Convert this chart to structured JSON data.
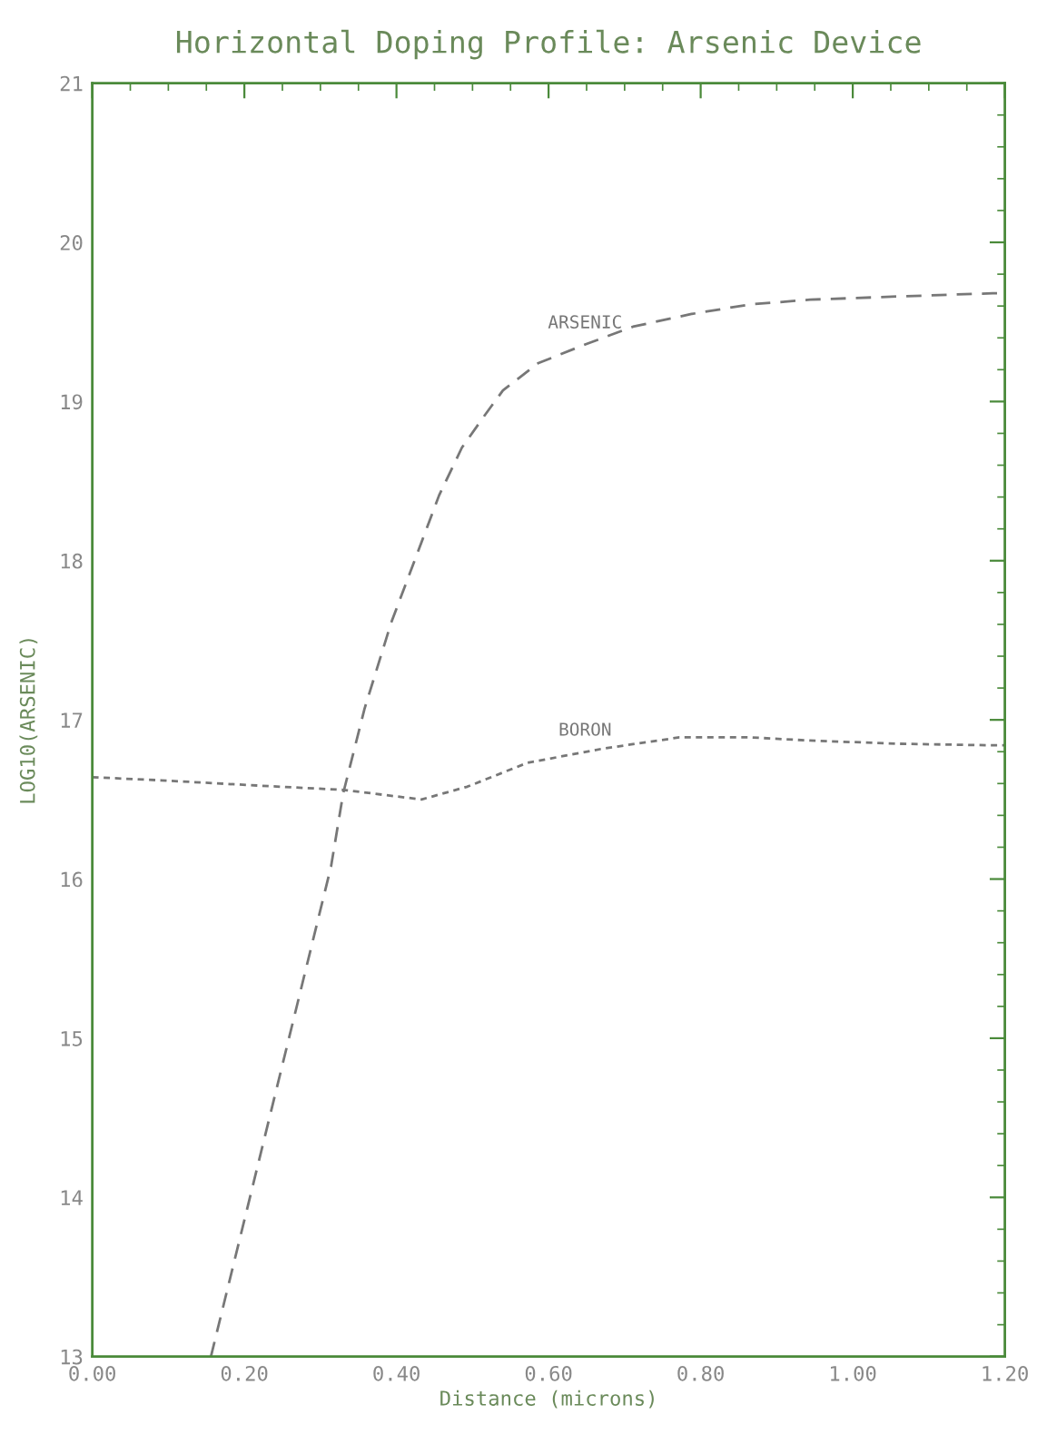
{
  "chart_data": {
    "type": "line",
    "title": "Horizontal Doping Profile: Arsenic Device",
    "xlabel": "Distance (microns)",
    "ylabel": "LOG10(ARSENIC)",
    "xlim": [
      0,
      1.2
    ],
    "xticks": [
      {
        "value": 0,
        "label": "0.00"
      },
      {
        "value": 0.2,
        "label": "0.20"
      },
      {
        "value": 0.4,
        "label": "0.40"
      },
      {
        "value": 0.6,
        "label": "0.60"
      },
      {
        "value": 0.8,
        "label": "0.80"
      },
      {
        "value": 1.0,
        "label": "1.00"
      },
      {
        "value": 1.2,
        "label": "1.20"
      }
    ],
    "ylim": [
      13,
      21
    ],
    "yticks": [
      13,
      14,
      15,
      16,
      17,
      18,
      19,
      20,
      21
    ],
    "grid": false,
    "marker": "none",
    "series": [
      {
        "name": "ARSENIC",
        "color": "#777777",
        "line_style": "dashed",
        "x": [
          0.156,
          0.314,
          0.33,
          0.358,
          0.393,
          0.423,
          0.456,
          0.486,
          0.514,
          0.54,
          0.586,
          0.649,
          0.711,
          0.788,
          0.865,
          0.944,
          1.06,
          1.184,
          1.2
        ],
        "values": [
          13,
          16.08,
          16.54,
          17.07,
          17.61,
          17.99,
          18.41,
          18.71,
          18.9,
          19.07,
          19.24,
          19.36,
          19.47,
          19.55,
          19.61,
          19.64,
          19.66,
          19.68,
          19.68
        ]
      },
      {
        "name": "BORON",
        "color": "#777777",
        "line_style": "dotted",
        "x": [
          0,
          0.091,
          0.207,
          0.33,
          0.433,
          0.493,
          0.572,
          0.672,
          0.772,
          0.865,
          0.944,
          1.06,
          1.184,
          1.2
        ],
        "values": [
          16.64,
          16.62,
          16.59,
          16.56,
          16.5,
          16.58,
          16.73,
          16.82,
          16.89,
          16.89,
          16.87,
          16.85,
          16.84,
          16.84
        ]
      }
    ]
  }
}
